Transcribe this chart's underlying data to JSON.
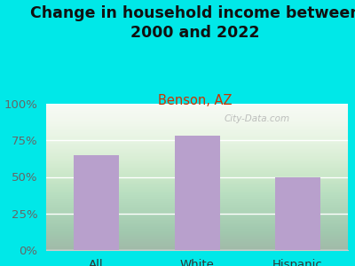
{
  "categories": [
    "All",
    "White",
    "Hispanic"
  ],
  "values": [
    65,
    78,
    50
  ],
  "bar_color": "#b8a0cc",
  "title_line1": "Change in household income between",
  "title_line2": "2000 and 2022",
  "subtitle": "Benson, AZ",
  "title_color": "#111111",
  "subtitle_color": "#cc3300",
  "background_color": "#00e8e8",
  "plot_bg_top": "#e8efe0",
  "plot_bg_bottom": "#f8faf5",
  "ytick_color": "#666666",
  "xtick_color": "#333333",
  "ylim": [
    0,
    100
  ],
  "yticks": [
    0,
    25,
    50,
    75,
    100
  ],
  "ytick_labels": [
    "0%",
    "25%",
    "50%",
    "75%",
    "100%"
  ],
  "watermark": "City-Data.com",
  "title_fontsize": 12.5,
  "subtitle_fontsize": 10.5,
  "tick_fontsize": 9.5,
  "bar_width": 0.45,
  "grid_color": "#ffffff",
  "bottom_spine_color": "#cccccc"
}
